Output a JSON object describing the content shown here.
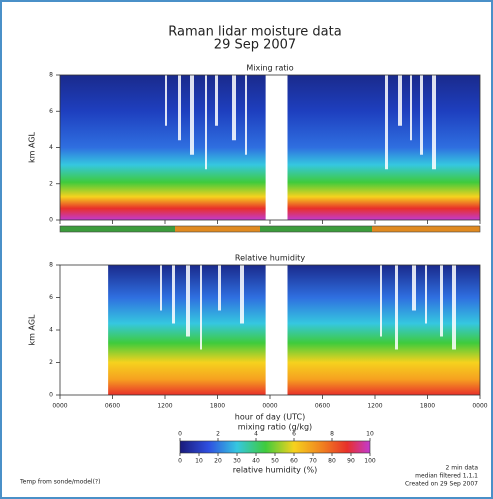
{
  "header": {
    "title": "Raman lidar moisture data",
    "subtitle": "29 Sep 2007"
  },
  "chart_data": [
    {
      "type": "heatmap",
      "title": "Mixing ratio",
      "ylabel": "km AGL",
      "ylim": [
        0,
        8
      ],
      "yticks": [
        0,
        2,
        4,
        6,
        8
      ],
      "xlim": [
        0,
        48
      ]
    },
    {
      "type": "heatmap",
      "title": "Relative humidity",
      "ylabel": "km AGL",
      "ylim": [
        0,
        8
      ],
      "yticks": [
        0,
        2,
        4,
        6,
        8
      ],
      "xlim": [
        0,
        48
      ],
      "xlabel": "hour of day (UTC)",
      "xticks": [
        {
          "value": 0,
          "label": "0000"
        },
        {
          "value": 6,
          "label": "0600"
        },
        {
          "value": 12,
          "label": "1200"
        },
        {
          "value": 18,
          "label": "1800"
        },
        {
          "value": 24,
          "label": "0000"
        },
        {
          "value": 30,
          "label": "0600"
        },
        {
          "value": 36,
          "label": "1200"
        },
        {
          "value": 42,
          "label": "1800"
        },
        {
          "value": 48,
          "label": "0000"
        }
      ]
    }
  ],
  "colorbar": {
    "top_label": "mixing ratio (g/kg)",
    "top_lim": [
      0,
      10
    ],
    "top_ticks": [
      0,
      2,
      4,
      6,
      8,
      10
    ],
    "bottom_label": "relative humidity (%)",
    "bottom_lim": [
      0,
      100
    ],
    "bottom_ticks": [
      0,
      10,
      20,
      30,
      40,
      50,
      60,
      70,
      80,
      90,
      100
    ]
  },
  "notes": {
    "left": "Temp from sonde/model(?)",
    "right": [
      "2 min data",
      "median filtered 1,1,1",
      "Created on 29 Sep 2007"
    ]
  }
}
